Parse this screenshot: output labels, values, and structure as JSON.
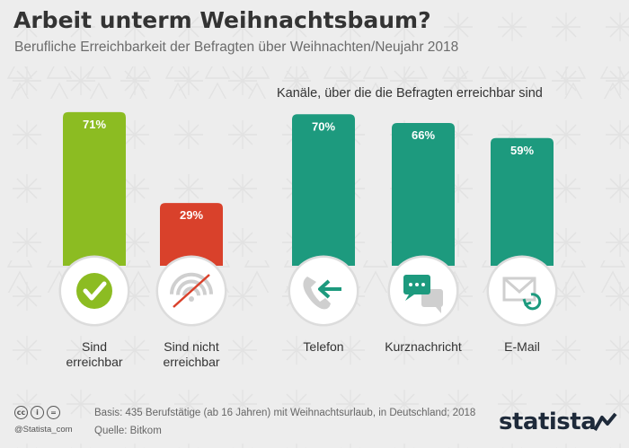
{
  "header": {
    "title": "Arbeit unterm Weihnachtsbaum?",
    "subtitle": "Berufliche Erreichbarkeit der Befragten über Weihnachten/Neujahr 2018"
  },
  "right_group_heading": "Kanäle, über die die Befragten erreichbar sind",
  "chart_data": [
    {
      "type": "bar",
      "categories": [
        "Sind\nerreichbar",
        "Sind nicht\nerreichbar"
      ],
      "values": [
        71,
        29
      ],
      "value_labels": [
        "71%",
        "29%"
      ],
      "colors": [
        "#8cbc22",
        "#d9412b"
      ],
      "icons": [
        "checkmark-icon",
        "wifi-off-icon"
      ],
      "ylim": [
        0,
        100
      ]
    },
    {
      "type": "bar",
      "title": "Kanäle, über die die Befragten erreichbar sind",
      "categories": [
        "Telefon",
        "Kurznachricht",
        "E-Mail"
      ],
      "values": [
        70,
        66,
        59
      ],
      "value_labels": [
        "70%",
        "66%",
        "59%"
      ],
      "colors": [
        "#1d9a7e",
        "#1d9a7e",
        "#1d9a7e"
      ],
      "icons": [
        "phone-icon",
        "chat-icon",
        "email-icon"
      ],
      "ylim": [
        0,
        100
      ]
    }
  ],
  "footer": {
    "cc_icons": [
      "cc",
      "i",
      "="
    ],
    "handle": "@Statista_com",
    "basis": "Basis: 435 Berufstätige (ab 16 Jahren) mit Weihnachtsurlaub, in Deutschland; 2018",
    "source": "Quelle: Bitkom",
    "brand": "statista"
  }
}
